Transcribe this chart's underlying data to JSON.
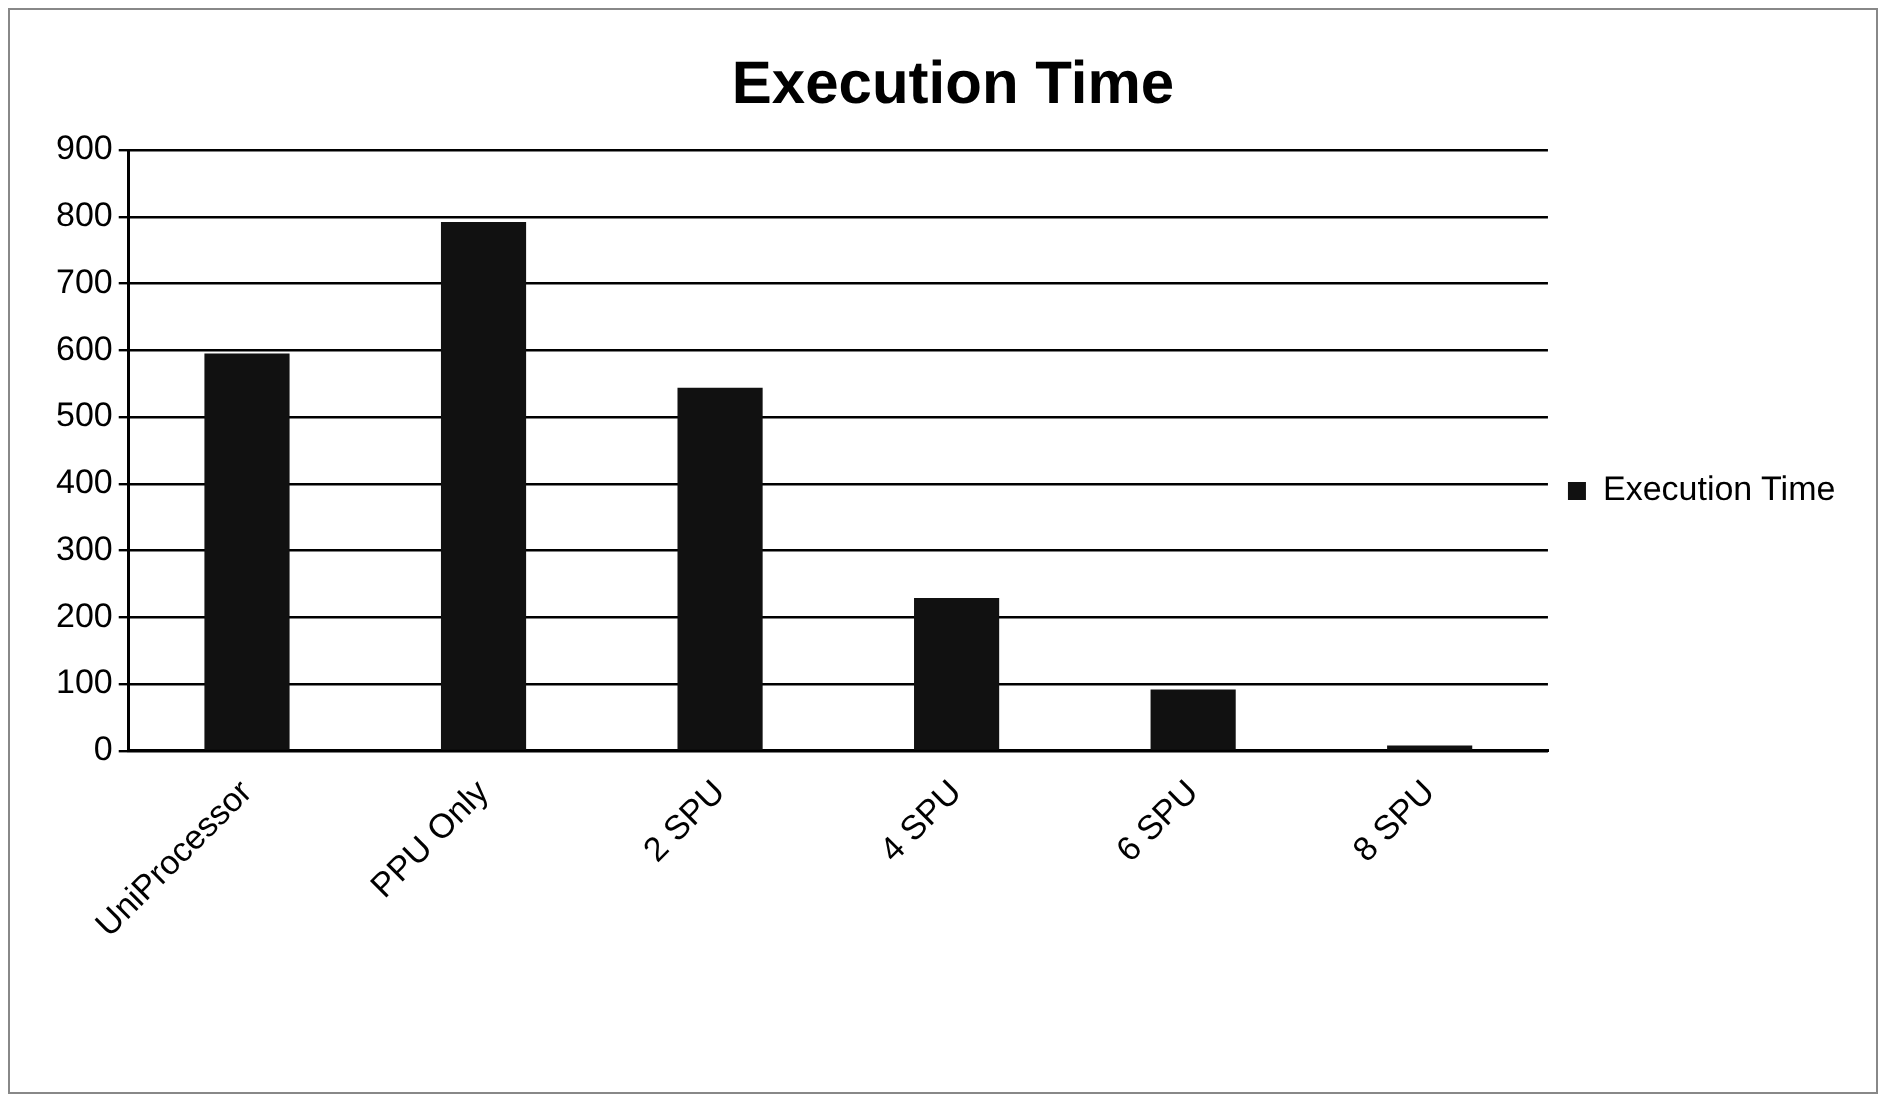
{
  "chart_data": {
    "type": "bar",
    "title": "Execution Time",
    "categories": [
      "UniProcessor",
      "PPU Only",
      "2 SPU",
      "4 SPU",
      "6 SPU",
      "8 SPU"
    ],
    "series": [
      {
        "name": "Execution Time",
        "color": "#111111",
        "values": [
          595,
          792,
          544,
          229,
          92,
          8
        ]
      }
    ],
    "ylim": [
      0,
      900
    ],
    "yticks": [
      0,
      100,
      200,
      300,
      400,
      500,
      600,
      700,
      800,
      900
    ],
    "grid": "y",
    "legend": "right"
  }
}
